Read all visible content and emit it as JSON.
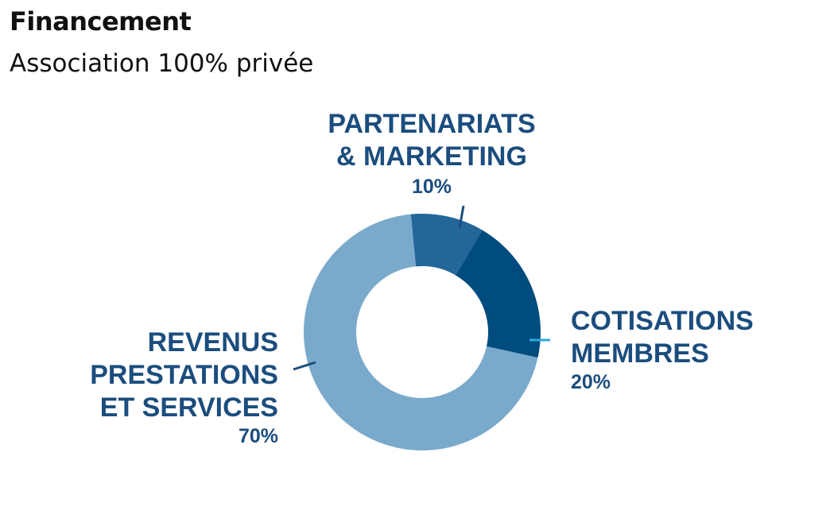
{
  "header": {
    "title": "Financement",
    "subtitle": "Association 100% privée"
  },
  "chart_data": {
    "type": "pie",
    "donut": true,
    "slices": [
      {
        "lines": [
          "PARTENARIATS",
          "& MARKETING"
        ],
        "value": 10,
        "value_label": "10%",
        "color": "#23669a"
      },
      {
        "lines": [
          "COTISATIONS",
          "MEMBRES"
        ],
        "value": 20,
        "value_label": "20%",
        "color": "#004c7f"
      },
      {
        "lines": [
          "REVENUS",
          "PRESTATIONS",
          "ET SERVICES"
        ],
        "value": 70,
        "value_label": "70%",
        "color": "#7aaacb"
      }
    ],
    "label_color": "#1b4d7e",
    "leader_colors": [
      "#1b4d7e",
      "#29a9e0",
      "#1b4d7e"
    ],
    "legend": "none"
  }
}
